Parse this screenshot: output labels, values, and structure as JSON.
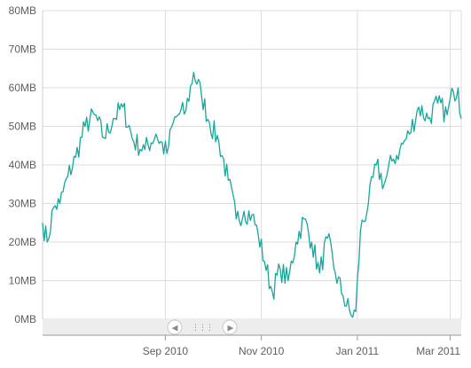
{
  "chart_data": {
    "type": "line",
    "title": "",
    "xlabel": "",
    "ylabel": "",
    "unit": "MB",
    "ylim": [
      0,
      80
    ],
    "y_ticks": [
      "0MB",
      "10MB",
      "20MB",
      "30MB",
      "40MB",
      "50MB",
      "60MB",
      "70MB",
      "80MB"
    ],
    "x_ticks": [
      "Sep 2010",
      "Nov 2010",
      "Jan 2011",
      "Mar 2011"
    ],
    "xlim": [
      "2010-06-15",
      "2011-03-08"
    ],
    "grid": true,
    "series": [
      {
        "color": "#1aa59a",
        "x": [
          "2010-06-15",
          "2010-06-18",
          "2010-06-22",
          "2010-06-26",
          "2010-07-01",
          "2010-07-06",
          "2010-07-12",
          "2010-07-18",
          "2010-07-24",
          "2010-07-30",
          "2010-08-05",
          "2010-08-12",
          "2010-08-19",
          "2010-08-26",
          "2010-09-02",
          "2010-09-06",
          "2010-09-09",
          "2010-09-14",
          "2010-09-19",
          "2010-09-24",
          "2010-09-29",
          "2010-10-05",
          "2010-10-11",
          "2010-10-16",
          "2010-10-21",
          "2010-10-26",
          "2010-10-30",
          "2010-11-03",
          "2010-11-08",
          "2010-11-13",
          "2010-11-18",
          "2010-11-23",
          "2010-11-28",
          "2010-12-03",
          "2010-12-08",
          "2010-12-13",
          "2010-12-18",
          "2010-12-23",
          "2010-12-28",
          "2010-12-31",
          "2011-01-03",
          "2011-01-08",
          "2011-01-13",
          "2011-01-18",
          "2011-01-23",
          "2011-01-28",
          "2011-02-03",
          "2011-02-09",
          "2011-02-15",
          "2011-02-21",
          "2011-02-27",
          "2011-03-03",
          "2011-03-06",
          "2011-03-08"
        ],
        "values": [
          25,
          20,
          29,
          30,
          37,
          42,
          50,
          53,
          47,
          52,
          55,
          46,
          44,
          48,
          43,
          51,
          53,
          54,
          64,
          58,
          51,
          46,
          36,
          26,
          28,
          27,
          22,
          15,
          7,
          13,
          10,
          20,
          26,
          20,
          12,
          21,
          12,
          6,
          1,
          2,
          23,
          30,
          40,
          35,
          41,
          44,
          48,
          55,
          52,
          56,
          53,
          59,
          60,
          52
        ]
      }
    ]
  },
  "navigator": {
    "left_arrow": "◀",
    "right_arrow": "▶",
    "grip": "⋮⋮⋮"
  }
}
